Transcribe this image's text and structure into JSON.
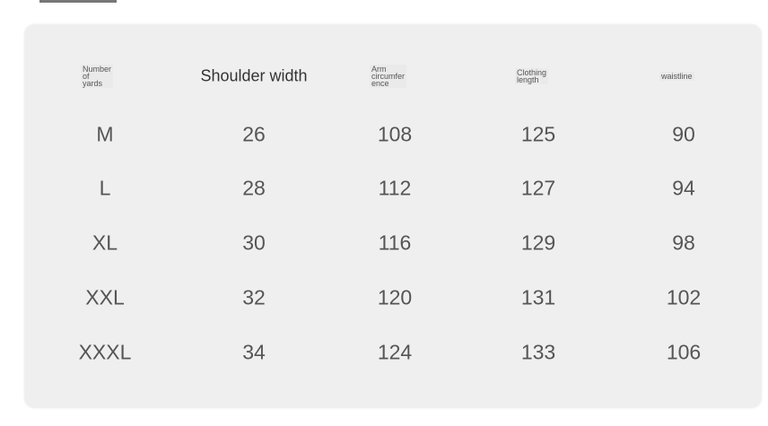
{
  "headers": {
    "size": "Number\nof\nyards",
    "shoulder": "Shoulder width",
    "arm": "Arm\ncircumfer\nence",
    "length": "Clothing\nlength",
    "waist": "waistline"
  },
  "rows": [
    {
      "size": "M",
      "shoulder": "26",
      "arm": "108",
      "length": "125",
      "waist": "90"
    },
    {
      "size": "L",
      "shoulder": "28",
      "arm": "112",
      "length": "127",
      "waist": "94"
    },
    {
      "size": "XL",
      "shoulder": "30",
      "arm": "116",
      "length": "129",
      "waist": "98"
    },
    {
      "size": "XXL",
      "shoulder": "32",
      "arm": "120",
      "length": "131",
      "waist": "102"
    },
    {
      "size": "XXXL",
      "shoulder": "34",
      "arm": "124",
      "length": "133",
      "waist": "106"
    }
  ]
}
